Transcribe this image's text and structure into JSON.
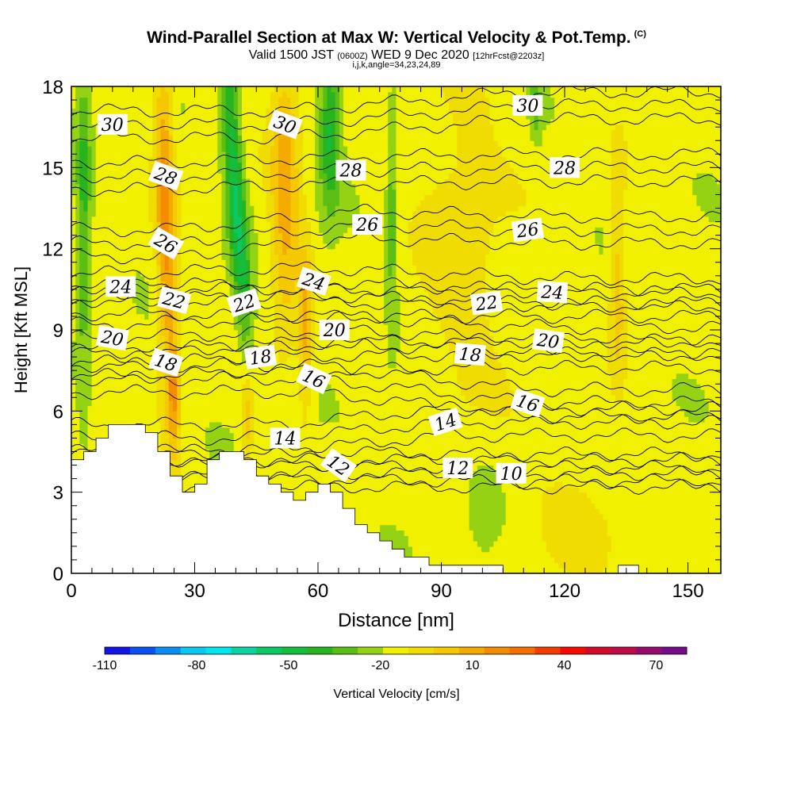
{
  "header": {
    "title": "Wind-Parallel Section at Max W: Vertical Velocity & Pot.Temp.",
    "copyright": "(C)",
    "valid_prefix": "Valid 1500 JST",
    "utc_time": "(0600Z)",
    "valid_date": "WED 9 Dec 2020",
    "forecast": "[12hrFcst@2203z]",
    "indices": "i,j,k,angle=34,23,24,89"
  },
  "chart_data": {
    "type": "heatmap",
    "xlabel": "Distance [nm]",
    "ylabel": "Height [Kft MSL]",
    "xlim": [
      0,
      158
    ],
    "ylim": [
      0,
      18
    ],
    "x_ticks": [
      0,
      30,
      60,
      90,
      120,
      150
    ],
    "y_ticks": [
      0,
      3,
      6,
      9,
      12,
      15,
      18
    ],
    "colorbar": {
      "label": "Vertical Velocity [cm/s]",
      "min": -110,
      "max": 80,
      "step": 10,
      "tick_values": [
        -110,
        -80,
        -50,
        -20,
        10,
        40,
        70
      ],
      "colors": [
        "#1414e6",
        "#0a50f0",
        "#0a8cf0",
        "#0ac8f0",
        "#00e6f0",
        "#0ad2a0",
        "#0ac864",
        "#14be3c",
        "#28b41e",
        "#5abe14",
        "#96d214",
        "#f0f000",
        "#f0dc00",
        "#f5c800",
        "#f5aa00",
        "#f58c00",
        "#f56e00",
        "#f53c00",
        "#f50a00",
        "#d20a28",
        "#be0a46",
        "#960a6e",
        "#780a8c"
      ]
    },
    "terrain": [
      [
        0,
        4.2
      ],
      [
        3,
        4.2
      ],
      [
        3,
        4.5
      ],
      [
        6,
        4.5
      ],
      [
        6,
        5.0
      ],
      [
        9,
        5.0
      ],
      [
        9,
        5.5
      ],
      [
        18,
        5.5
      ],
      [
        18,
        5.2
      ],
      [
        21,
        5.2
      ],
      [
        21,
        4.5
      ],
      [
        24,
        4.5
      ],
      [
        24,
        3.6
      ],
      [
        27,
        3.6
      ],
      [
        27,
        3.0
      ],
      [
        30,
        3.0
      ],
      [
        30,
        3.3
      ],
      [
        33,
        3.3
      ],
      [
        33,
        4.2
      ],
      [
        36,
        4.2
      ],
      [
        36,
        4.5
      ],
      [
        42,
        4.5
      ],
      [
        42,
        4.2
      ],
      [
        45,
        4.2
      ],
      [
        45,
        3.6
      ],
      [
        48,
        3.6
      ],
      [
        48,
        3.3
      ],
      [
        51,
        3.3
      ],
      [
        51,
        3.0
      ],
      [
        54,
        3.0
      ],
      [
        54,
        2.7
      ],
      [
        57,
        2.7
      ],
      [
        57,
        3.0
      ],
      [
        60,
        3.0
      ],
      [
        60,
        3.3
      ],
      [
        63,
        3.3
      ],
      [
        63,
        3.0
      ],
      [
        66,
        3.0
      ],
      [
        66,
        2.4
      ],
      [
        69,
        2.4
      ],
      [
        69,
        1.8
      ],
      [
        72,
        1.8
      ],
      [
        72,
        1.5
      ],
      [
        75,
        1.5
      ],
      [
        75,
        1.2
      ],
      [
        78,
        1.2
      ],
      [
        78,
        0.9
      ],
      [
        81,
        0.9
      ],
      [
        81,
        0.6
      ],
      [
        87,
        0.6
      ],
      [
        87,
        0.3
      ],
      [
        105,
        0.3
      ],
      [
        105,
        0
      ],
      [
        133,
        0
      ],
      [
        133,
        0.3
      ],
      [
        138,
        0.3
      ],
      [
        138,
        0
      ],
      [
        158,
        0
      ]
    ],
    "velocity_features": [
      {
        "x": 3,
        "y": 13.5,
        "sx": 1.2,
        "sy": 4.5,
        "tilt": 0,
        "w": -25
      },
      {
        "x": 23,
        "y": 13.0,
        "sx": 1.6,
        "sy": 5.0,
        "tilt": -0.05,
        "w": 40
      },
      {
        "x": 25,
        "y": 6.5,
        "sx": 1.0,
        "sy": 1.5,
        "tilt": 0,
        "w": 25
      },
      {
        "x": 40,
        "y": 14.0,
        "sx": 1.6,
        "sy": 4.2,
        "tilt": -0.15,
        "w": -45
      },
      {
        "x": 52,
        "y": 14.0,
        "sx": 2.4,
        "sy": 3.6,
        "tilt": 0,
        "w": 32
      },
      {
        "x": 57,
        "y": 9.0,
        "sx": 1.2,
        "sy": 2.2,
        "tilt": 0,
        "w": 28
      },
      {
        "x": 43,
        "y": 5.8,
        "sx": 1.2,
        "sy": 1.2,
        "tilt": 0,
        "w": 26
      },
      {
        "x": 63,
        "y": 16.5,
        "sx": 1.8,
        "sy": 2.2,
        "tilt": 0,
        "w": -35
      },
      {
        "x": 78,
        "y": 13.0,
        "sx": 0.9,
        "sy": 3.0,
        "tilt": 0,
        "w": -20
      },
      {
        "x": 95,
        "y": 12.5,
        "sx": 7.0,
        "sy": 5.0,
        "tilt": 0,
        "w": 12
      },
      {
        "x": 113,
        "y": 17.5,
        "sx": 0.9,
        "sy": 1.0,
        "tilt": 0,
        "w": -20
      },
      {
        "x": 133,
        "y": 11.0,
        "sx": 1.3,
        "sy": 2.6,
        "tilt": 0,
        "w": 22
      },
      {
        "x": 122,
        "y": 2.0,
        "sx": 9.0,
        "sy": 1.5,
        "tilt": 0,
        "w": 8
      },
      {
        "x": 100,
        "y": 2.0,
        "sx": 3.0,
        "sy": 1.5,
        "tilt": 0,
        "w": -8
      }
    ],
    "theta_contours": [
      {
        "value": "12",
        "label_x": 65,
        "label_y": 4.0,
        "angle": -35
      },
      {
        "value": "14",
        "label_x": 52,
        "label_y": 5.0,
        "angle": 0
      },
      {
        "value": "14",
        "label_x": 91,
        "label_y": 5.6,
        "angle": 18
      },
      {
        "value": "12",
        "label_x": 94,
        "label_y": 3.9,
        "angle": 0
      },
      {
        "value": "10",
        "label_x": 107,
        "label_y": 3.7,
        "angle": 0
      },
      {
        "value": "16",
        "label_x": 59,
        "label_y": 7.2,
        "angle": -25
      },
      {
        "value": "16",
        "label_x": 111,
        "label_y": 6.3,
        "angle": -18
      },
      {
        "value": "18",
        "label_x": 23,
        "label_y": 7.8,
        "angle": -18
      },
      {
        "value": "18",
        "label_x": 46,
        "label_y": 8.0,
        "angle": 8
      },
      {
        "value": "18",
        "label_x": 97,
        "label_y": 8.1,
        "angle": -5
      },
      {
        "value": "20",
        "label_x": 10,
        "label_y": 8.7,
        "angle": -10
      },
      {
        "value": "20",
        "label_x": 64,
        "label_y": 9.0,
        "angle": 0
      },
      {
        "value": "20",
        "label_x": 116,
        "label_y": 8.6,
        "angle": -8
      },
      {
        "value": "22",
        "label_x": 25,
        "label_y": 10.1,
        "angle": -15
      },
      {
        "value": "22",
        "label_x": 42,
        "label_y": 10.0,
        "angle": 18
      },
      {
        "value": "22",
        "label_x": 101,
        "label_y": 10.0,
        "angle": 8
      },
      {
        "value": "24",
        "label_x": 12,
        "label_y": 10.6,
        "angle": 0
      },
      {
        "value": "24",
        "label_x": 59,
        "label_y": 10.8,
        "angle": -18
      },
      {
        "value": "24",
        "label_x": 117,
        "label_y": 10.4,
        "angle": -3
      },
      {
        "value": "26",
        "label_x": 23,
        "label_y": 12.2,
        "angle": -30
      },
      {
        "value": "26",
        "label_x": 72,
        "label_y": 12.9,
        "angle": 0
      },
      {
        "value": "26",
        "label_x": 111,
        "label_y": 12.7,
        "angle": 8
      },
      {
        "value": "28",
        "label_x": 23,
        "label_y": 14.7,
        "angle": -20
      },
      {
        "value": "28",
        "label_x": 68,
        "label_y": 14.9,
        "angle": 0
      },
      {
        "value": "28",
        "label_x": 120,
        "label_y": 15.0,
        "angle": 0
      },
      {
        "value": "30",
        "label_x": 10,
        "label_y": 16.6,
        "angle": 0
      },
      {
        "value": "30",
        "label_x": 52,
        "label_y": 16.6,
        "angle": -20
      },
      {
        "value": "30",
        "label_x": 111,
        "label_y": 17.3,
        "angle": 0
      }
    ]
  }
}
